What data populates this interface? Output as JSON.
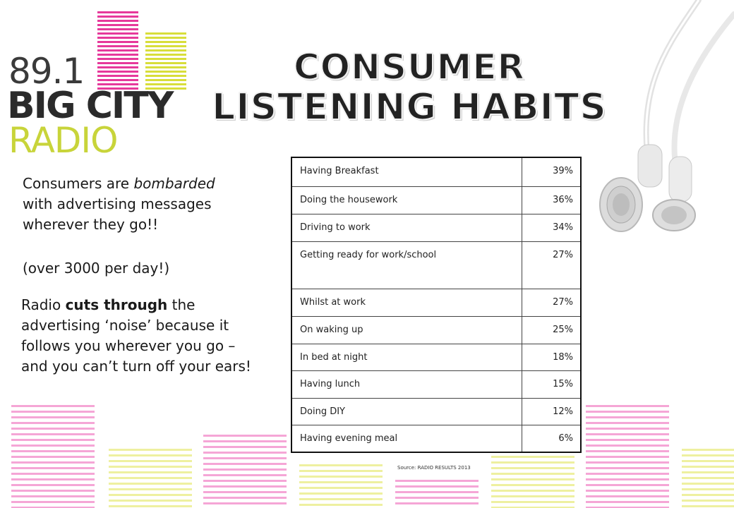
{
  "logo": {
    "frequency": "89.1",
    "name": "BIG CITY",
    "word": "RADIO",
    "colors": {
      "pink": "#e6399b",
      "yellow": "#d8de3a",
      "dark": "#2b2b2b"
    }
  },
  "title": {
    "line1": "CONSUMER",
    "line2": "LISTENING HABITS"
  },
  "intro": {
    "prefix": "Consumers are ",
    "emphasis": "bombarded",
    "suffix": " with advertising messages wherever they go!!",
    "note": "(over 3000 per day!)"
  },
  "radio_text": {
    "prefix": "Radio ",
    "emphasis": "cuts through",
    "suffix": " the advertising ‘noise’ because it follows you wherever you go – and you can’t turn off your ears!"
  },
  "table": {
    "rows": [
      {
        "activity": "Having Breakfast",
        "percent": "39%"
      },
      {
        "activity": "Doing the housework",
        "percent": "36%"
      },
      {
        "activity": "Driving to work",
        "percent": "34%"
      },
      {
        "activity": "Getting ready for work/school",
        "percent": "27%"
      },
      {
        "activity": "Whilst at work",
        "percent": "27%"
      },
      {
        "activity": "On waking up",
        "percent": "25%"
      },
      {
        "activity": "In bed at night",
        "percent": "18%"
      },
      {
        "activity": "Having lunch",
        "percent": "15%"
      },
      {
        "activity": "Doing DIY",
        "percent": "12%"
      },
      {
        "activity": "Having evening meal",
        "percent": "6%"
      }
    ]
  },
  "source": "Source: RADIO RESULTS 2013",
  "decor": {
    "pink": "#f5a6d6",
    "yellow": "#eef0a0",
    "icon": "earphones-icon"
  }
}
